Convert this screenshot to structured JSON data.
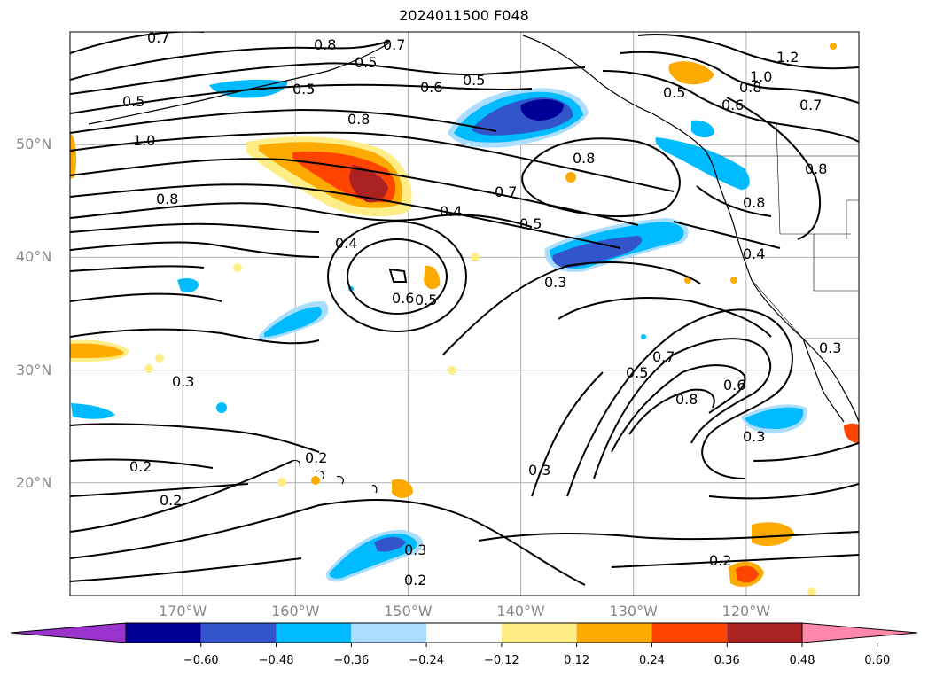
{
  "title": "2024011500 F048",
  "lat_ticks": [
    {
      "label": "50°N",
      "lat": 50
    },
    {
      "label": "40°N",
      "lat": 40
    },
    {
      "label": "30°N",
      "lat": 30
    },
    {
      "label": "20°N",
      "lat": 20
    }
  ],
  "lon_ticks": [
    {
      "label": "170°W",
      "lon": -170
    },
    {
      "label": "160°W",
      "lon": -160
    },
    {
      "label": "150°W",
      "lon": -150
    },
    {
      "label": "140°W",
      "lon": -140
    },
    {
      "label": "130°W",
      "lon": -130
    },
    {
      "label": "120°W",
      "lon": -120
    }
  ],
  "colorbar": {
    "ticks": [
      "−0.60",
      "−0.48",
      "−0.36",
      "−0.24",
      "−0.12",
      "0.12",
      "0.24",
      "0.36",
      "0.48",
      "0.60"
    ],
    "colors": [
      "#9933cc",
      "#000099",
      "#3355cc",
      "#00bbff",
      "#aaddff",
      "#ffffff",
      "#ffee88",
      "#ffaa00",
      "#ff4400",
      "#aa2222",
      "#ff88aa"
    ]
  },
  "contour_labels": [
    "0.7",
    "0.8",
    "0.7",
    "0.5",
    "0.5",
    "0.5",
    "0.6",
    "0.5",
    "0.8",
    "1.0",
    "0.8",
    "0.8",
    "0.7",
    "0.4",
    "0.5",
    "0.4",
    "0.6",
    "0.5",
    "0.3",
    "0.3",
    "0.2",
    "0.2",
    "0.2",
    "0.5",
    "0.7",
    "0.8",
    "0.6",
    "0.3",
    "0.3",
    "0.3",
    "0.2",
    "0.2",
    "1.2",
    "1.0",
    "0.8",
    "0.6",
    "0.5",
    "0.7",
    "0.8",
    "0.4",
    "0.3",
    "0.8"
  ]
}
